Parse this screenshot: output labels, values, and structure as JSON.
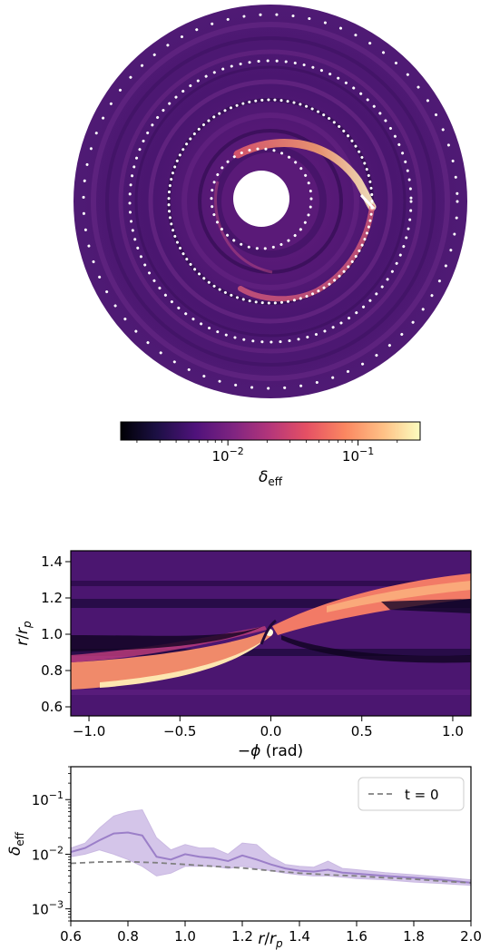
{
  "chart_data": [
    {
      "type": "heatmap",
      "subtype": "polar-disk",
      "colormap": "magma",
      "colorbar": {
        "label": "δ_eff",
        "scale": "log",
        "range": [
          0.0015,
          0.3
        ],
        "ticks": [
          {
            "value": 0.01,
            "label": "10^-2"
          },
          {
            "value": 0.1,
            "label": "10^-1"
          }
        ]
      },
      "dotted_circles": [
        "inner-ring",
        "planet-ring",
        "outer-ring-1",
        "outer-ring-2"
      ],
      "grid": false
    },
    {
      "type": "heatmap",
      "colormap": "magma",
      "xlabel": "−ϕ (rad)",
      "ylabel": "r/r_p",
      "xlim": [
        -1.1,
        1.1
      ],
      "ylim": [
        0.55,
        1.46
      ],
      "xticks": [
        {
          "value": -1.0,
          "label": "−1.0"
        },
        {
          "value": -0.5,
          "label": "−0.5"
        },
        {
          "value": 0.0,
          "label": "0.0"
        },
        {
          "value": 0.5,
          "label": "0.5"
        },
        {
          "value": 1.0,
          "label": "1.0"
        }
      ],
      "yticks": [
        {
          "value": 0.6,
          "label": "0.6"
        },
        {
          "value": 0.8,
          "label": "0.8"
        },
        {
          "value": 1.0,
          "label": "1.0"
        },
        {
          "value": 1.2,
          "label": "1.2"
        },
        {
          "value": 1.4,
          "label": "1.4"
        }
      ],
      "grid": false
    },
    {
      "type": "line",
      "xlabel": "r/r_p",
      "ylabel": "δ_eff",
      "yscale": "log",
      "xlim": [
        0.6,
        2.0
      ],
      "ylim": [
        0.0006,
        0.4
      ],
      "xticks": [
        {
          "value": 0.6,
          "label": "0.6"
        },
        {
          "value": 0.8,
          "label": "0.8"
        },
        {
          "value": 1.0,
          "label": "1.0"
        },
        {
          "value": 1.2,
          "label": "1.2"
        },
        {
          "value": 1.4,
          "label": "1.4"
        },
        {
          "value": 1.6,
          "label": "1.6"
        },
        {
          "value": 1.8,
          "label": "1.8"
        },
        {
          "value": 2.0,
          "label": "2.0"
        }
      ],
      "yticks": [
        {
          "value": 0.001,
          "label": "10^-3"
        },
        {
          "value": 0.01,
          "label": "10^-2"
        },
        {
          "value": 0.1,
          "label": "10^-1"
        }
      ],
      "legend": {
        "placement": "top-right"
      },
      "series": [
        {
          "name": "",
          "style": "solid",
          "color": "#9b7fc8",
          "x": [
            0.6,
            0.65,
            0.7,
            0.75,
            0.8,
            0.85,
            0.9,
            0.95,
            1.0,
            1.05,
            1.1,
            1.15,
            1.2,
            1.25,
            1.3,
            1.35,
            1.4,
            1.45,
            1.5,
            1.55,
            1.6,
            1.7,
            1.8,
            1.9,
            2.0
          ],
          "y": [
            0.011,
            0.013,
            0.018,
            0.024,
            0.025,
            0.022,
            0.009,
            0.008,
            0.01,
            0.009,
            0.0085,
            0.0075,
            0.0095,
            0.008,
            0.0065,
            0.0055,
            0.005,
            0.0048,
            0.0052,
            0.0046,
            0.0044,
            0.004,
            0.0037,
            0.0034,
            0.003
          ],
          "band_low": [
            0.009,
            0.01,
            0.012,
            0.01,
            0.008,
            0.006,
            0.004,
            0.0045,
            0.006,
            0.006,
            0.006,
            0.0055,
            0.006,
            0.0055,
            0.005,
            0.0045,
            0.0042,
            0.004,
            0.004,
            0.0038,
            0.0036,
            0.0034,
            0.0031,
            0.0029,
            0.0027
          ],
          "band_high": [
            0.013,
            0.016,
            0.03,
            0.05,
            0.06,
            0.065,
            0.02,
            0.012,
            0.015,
            0.013,
            0.013,
            0.01,
            0.016,
            0.015,
            0.009,
            0.0065,
            0.006,
            0.0058,
            0.0075,
            0.0055,
            0.0052,
            0.0046,
            0.0042,
            0.0038,
            0.0034
          ]
        },
        {
          "name": "t = 0",
          "style": "dashed",
          "color": "#808080",
          "x": [
            0.6,
            0.7,
            0.8,
            0.9,
            1.0,
            1.1,
            1.2,
            1.3,
            1.4,
            1.5,
            1.6,
            1.7,
            1.8,
            1.9,
            2.0
          ],
          "y": [
            0.0068,
            0.0072,
            0.0073,
            0.007,
            0.0065,
            0.006,
            0.0056,
            0.005,
            0.0045,
            0.0042,
            0.004,
            0.0037,
            0.0035,
            0.0032,
            0.003
          ]
        }
      ]
    }
  ]
}
